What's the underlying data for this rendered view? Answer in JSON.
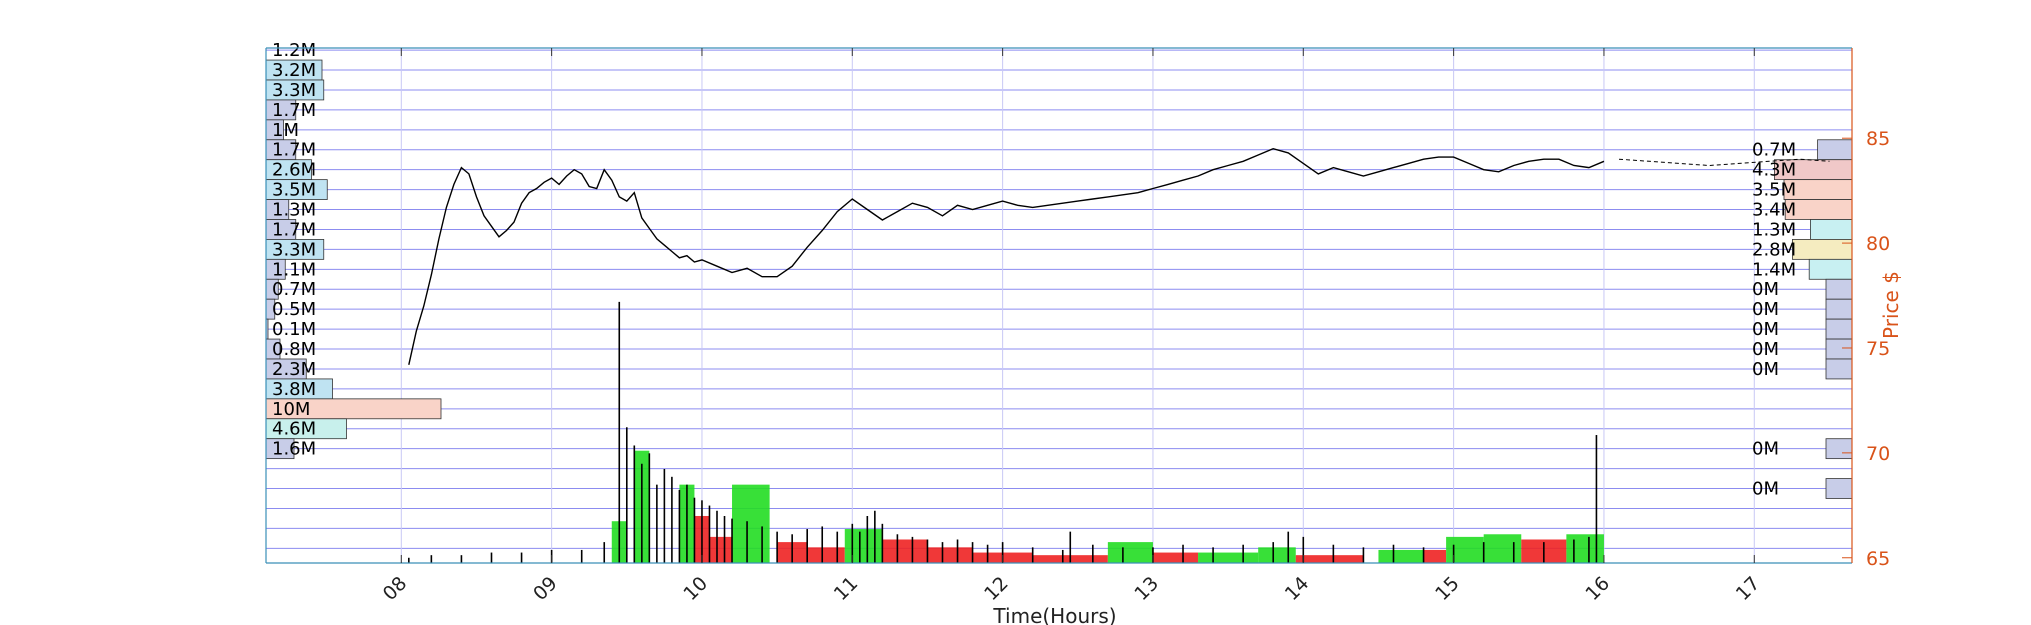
{
  "chart_data": {
    "type": "line",
    "xlabel": "Time(Hours)",
    "ylabel_right": "Price $",
    "xlim": [
      7.1,
      17.65
    ],
    "ylim": [
      64.75,
      89.3
    ],
    "x_ticks": [
      {
        "v": 8,
        "label": "08"
      },
      {
        "v": 9,
        "label": "09"
      },
      {
        "v": 10,
        "label": "10"
      },
      {
        "v": 11,
        "label": "11"
      },
      {
        "v": 12,
        "label": "12"
      },
      {
        "v": 13,
        "label": "13"
      },
      {
        "v": 14,
        "label": "14"
      },
      {
        "v": 15,
        "label": "15"
      },
      {
        "v": 16,
        "label": "16"
      },
      {
        "v": 17,
        "label": "17"
      }
    ],
    "y_ticks": [
      {
        "v": 65,
        "label": "65"
      },
      {
        "v": 70,
        "label": "70"
      },
      {
        "v": 75,
        "label": "75"
      },
      {
        "v": 80,
        "label": "80"
      },
      {
        "v": 85,
        "label": "85"
      }
    ],
    "price_bands": [
      89.2,
      88.25,
      87.3,
      86.35,
      85.4,
      84.45,
      83.5,
      82.55,
      81.6,
      80.65,
      79.7,
      78.75,
      77.8,
      76.85,
      75.9,
      74.95,
      74.0,
      73.05,
      72.1,
      71.15,
      70.2,
      69.25,
      68.3,
      67.35,
      66.4,
      65.45
    ],
    "left_volume_profile": [
      {
        "band": 89.2,
        "label": "1.2M",
        "value": 1.2,
        "color": ""
      },
      {
        "band": 88.25,
        "label": "3.2M",
        "value": 3.2,
        "color": "#bfe3f2"
      },
      {
        "band": 87.3,
        "label": "3.3M",
        "value": 3.3,
        "color": "#bfe3f2"
      },
      {
        "band": 86.35,
        "label": "1.7M",
        "value": 1.7,
        "color": "#c8cde8"
      },
      {
        "band": 85.4,
        "label": "1M",
        "value": 1.0,
        "color": "#c8cde8"
      },
      {
        "band": 84.45,
        "label": "1.7M",
        "value": 1.7,
        "color": "#c8cde8"
      },
      {
        "band": 83.5,
        "label": "2.6M",
        "value": 2.6,
        "color": "#bfe3f2"
      },
      {
        "band": 82.55,
        "label": "3.5M",
        "value": 3.5,
        "color": "#bfe3f2"
      },
      {
        "band": 81.6,
        "label": "1.3M",
        "value": 1.3,
        "color": "#c8cde8"
      },
      {
        "band": 80.65,
        "label": "1.7M",
        "value": 1.7,
        "color": "#c8cde8"
      },
      {
        "band": 79.7,
        "label": "3.3M",
        "value": 3.3,
        "color": "#bfe3f2"
      },
      {
        "band": 78.75,
        "label": "1.1M",
        "value": 1.1,
        "color": "#c8cde8"
      },
      {
        "band": 77.8,
        "label": "0.7M",
        "value": 0.7,
        "color": "#c8cde8"
      },
      {
        "band": 76.85,
        "label": "0.5M",
        "value": 0.5,
        "color": "#c8cde8"
      },
      {
        "band": 75.9,
        "label": "0.1M",
        "value": 0.1,
        "color": "#c8cde8"
      },
      {
        "band": 74.95,
        "label": "0.8M",
        "value": 0.8,
        "color": "#c8cde8"
      },
      {
        "band": 74.0,
        "label": "2.3M",
        "value": 2.3,
        "color": "#c8cde8"
      },
      {
        "band": 73.05,
        "label": "3.8M",
        "value": 3.8,
        "color": "#bfe3f2"
      },
      {
        "band": 72.1,
        "label": "10M",
        "value": 10.0,
        "color": "#f9d3c8"
      },
      {
        "band": 71.15,
        "label": "4.6M",
        "value": 4.6,
        "color": "#c8f0ec"
      },
      {
        "band": 70.2,
        "label": "1.6M",
        "value": 1.6,
        "color": "#c8cde8"
      }
    ],
    "right_volume_profile": [
      {
        "band": 84.45,
        "label": "0.7M",
        "value": 0.7,
        "color": "#c8cde8"
      },
      {
        "band": 83.5,
        "label": "4.3M",
        "value": 4.3,
        "color": "#f0c8c8"
      },
      {
        "band": 82.55,
        "label": "3.5M",
        "value": 3.5,
        "color": "#f9d3c8"
      },
      {
        "band": 81.6,
        "label": "3.4M",
        "value": 3.4,
        "color": "#f9d3c8"
      },
      {
        "band": 80.65,
        "label": "1.3M",
        "value": 1.3,
        "color": "#c8f0f2"
      },
      {
        "band": 79.7,
        "label": "2.8M",
        "value": 2.8,
        "color": "#f5ecc0"
      },
      {
        "band": 78.75,
        "label": "1.4M",
        "value": 1.4,
        "color": "#c8f0f2"
      },
      {
        "band": 77.8,
        "label": "0M",
        "value": 0,
        "color": "#c8cde8"
      },
      {
        "band": 76.85,
        "label": "0M",
        "value": 0,
        "color": "#c8cde8"
      },
      {
        "band": 75.9,
        "label": "0M",
        "value": 0,
        "color": "#c8cde8"
      },
      {
        "band": 74.95,
        "label": "0M",
        "value": 0,
        "color": "#c8cde8"
      },
      {
        "band": 74.0,
        "label": "0M",
        "value": 0,
        "color": "#c8cde8"
      },
      {
        "band": 70.2,
        "label": "0M",
        "value": 0,
        "color": "#c8cde8"
      },
      {
        "band": 68.3,
        "label": "0M",
        "value": 0,
        "color": "#c8cde8"
      }
    ],
    "price_series": {
      "x": [
        8.05,
        8.1,
        8.15,
        8.2,
        8.25,
        8.3,
        8.35,
        8.4,
        8.45,
        8.5,
        8.55,
        8.6,
        8.65,
        8.7,
        8.75,
        8.8,
        8.85,
        8.9,
        8.95,
        9.0,
        9.05,
        9.1,
        9.15,
        9.2,
        9.25,
        9.3,
        9.35,
        9.4,
        9.45,
        9.5,
        9.55,
        9.6,
        9.65,
        9.7,
        9.75,
        9.8,
        9.85,
        9.9,
        9.95,
        10.0,
        10.1,
        10.2,
        10.3,
        10.4,
        10.5,
        10.6,
        10.7,
        10.8,
        10.9,
        11.0,
        11.1,
        11.2,
        11.3,
        11.4,
        11.5,
        11.6,
        11.7,
        11.8,
        11.9,
        12.0,
        12.1,
        12.2,
        12.3,
        12.4,
        12.5,
        12.6,
        12.7,
        12.8,
        12.9,
        13.0,
        13.1,
        13.2,
        13.3,
        13.4,
        13.5,
        13.6,
        13.7,
        13.8,
        13.9,
        14.0,
        14.1,
        14.2,
        14.3,
        14.4,
        14.5,
        14.6,
        14.7,
        14.8,
        14.9,
        15.0,
        15.1,
        15.2,
        15.3,
        15.4,
        15.5,
        15.6,
        15.7,
        15.8,
        15.9,
        16.0
      ],
      "y": [
        74.2,
        75.8,
        77.0,
        78.5,
        80.2,
        81.7,
        82.8,
        83.6,
        83.3,
        82.2,
        81.3,
        80.8,
        80.3,
        80.6,
        81.0,
        81.9,
        82.4,
        82.6,
        82.9,
        83.1,
        82.8,
        83.2,
        83.5,
        83.3,
        82.7,
        82.6,
        83.5,
        83.0,
        82.2,
        82.0,
        82.4,
        81.2,
        80.7,
        80.2,
        79.9,
        79.6,
        79.3,
        79.4,
        79.1,
        79.2,
        78.9,
        78.6,
        78.8,
        78.4,
        78.4,
        78.9,
        79.8,
        80.6,
        81.5,
        82.1,
        81.6,
        81.1,
        81.5,
        81.9,
        81.7,
        81.3,
        81.8,
        81.6,
        81.8,
        82.0,
        81.8,
        81.7,
        81.8,
        81.9,
        82.0,
        82.1,
        82.2,
        82.3,
        82.4,
        82.6,
        82.8,
        83.0,
        83.2,
        83.5,
        83.7,
        83.9,
        84.2,
        84.5,
        84.3,
        83.8,
        83.3,
        83.6,
        83.4,
        83.2,
        83.4,
        83.6,
        83.8,
        84.0,
        84.1,
        84.1,
        83.8,
        83.5,
        83.4,
        83.7,
        83.9,
        84.0,
        84.0,
        83.7,
        83.6,
        83.9
      ],
      "after_hours_x": [
        16.1,
        16.3,
        16.5,
        16.7,
        16.9,
        17.1,
        17.3,
        17.5
      ],
      "after_hours_y": [
        84.0,
        83.9,
        83.8,
        83.7,
        83.8,
        83.9,
        84.0,
        83.9
      ]
    },
    "volume_bars": {
      "note_max_scale": "bars drawn in relative units",
      "x": [
        8.05,
        8.2,
        8.4,
        8.6,
        8.8,
        9.0,
        9.2,
        9.35,
        9.45,
        9.5,
        9.55,
        9.6,
        9.65,
        9.7,
        9.75,
        9.8,
        9.85,
        9.9,
        9.95,
        10.0,
        10.05,
        10.1,
        10.15,
        10.2,
        10.3,
        10.4,
        10.5,
        10.6,
        10.7,
        10.8,
        10.9,
        11.0,
        11.05,
        11.1,
        11.15,
        11.2,
        11.3,
        11.4,
        11.5,
        11.6,
        11.7,
        11.8,
        11.9,
        12.0,
        12.2,
        12.4,
        12.45,
        12.6,
        12.8,
        13.0,
        13.2,
        13.4,
        13.6,
        13.8,
        13.9,
        14.0,
        14.2,
        14.4,
        14.6,
        14.8,
        15.0,
        15.2,
        15.4,
        15.6,
        15.8,
        15.9,
        15.95
      ],
      "v": [
        2,
        3,
        3,
        4,
        4,
        5,
        5,
        8,
        100,
        52,
        45,
        38,
        42,
        30,
        36,
        33,
        28,
        30,
        25,
        24,
        22,
        20,
        18,
        17,
        16,
        14,
        12,
        11,
        13,
        14,
        12,
        15,
        12,
        18,
        20,
        15,
        11,
        10,
        9,
        8,
        9,
        8,
        7,
        8,
        6,
        5,
        12,
        7,
        6,
        6,
        7,
        6,
        7,
        8,
        12,
        10,
        7,
        6,
        7,
        6,
        7,
        8,
        8,
        8,
        9,
        10,
        49
      ]
    },
    "trade_boxes": [
      {
        "x0": 9.4,
        "x1": 9.5,
        "v": 16,
        "color": "#22dd22"
      },
      {
        "x0": 9.55,
        "x1": 9.65,
        "v": 43,
        "color": "#22dd22"
      },
      {
        "x0": 9.85,
        "x1": 9.95,
        "v": 30,
        "color": "#22dd22"
      },
      {
        "x0": 9.95,
        "x1": 10.05,
        "v": 18,
        "color": "#ee2222"
      },
      {
        "x0": 10.05,
        "x1": 10.2,
        "v": 10,
        "color": "#ee2222"
      },
      {
        "x0": 10.2,
        "x1": 10.45,
        "v": 30,
        "color": "#22dd22"
      },
      {
        "x0": 10.5,
        "x1": 10.7,
        "v": 8,
        "color": "#ee2222"
      },
      {
        "x0": 10.7,
        "x1": 10.95,
        "v": 6,
        "color": "#ee2222"
      },
      {
        "x0": 10.95,
        "x1": 11.2,
        "v": 13,
        "color": "#22dd22"
      },
      {
        "x0": 11.2,
        "x1": 11.5,
        "v": 9,
        "color": "#ee2222"
      },
      {
        "x0": 11.5,
        "x1": 11.8,
        "v": 6,
        "color": "#ee2222"
      },
      {
        "x0": 11.8,
        "x1": 12.2,
        "v": 4,
        "color": "#ee2222"
      },
      {
        "x0": 12.2,
        "x1": 12.7,
        "v": 3,
        "color": "#ee2222"
      },
      {
        "x0": 12.7,
        "x1": 13.0,
        "v": 8,
        "color": "#22dd22"
      },
      {
        "x0": 13.0,
        "x1": 13.3,
        "v": 4,
        "color": "#ee2222"
      },
      {
        "x0": 13.3,
        "x1": 13.7,
        "v": 4,
        "color": "#22dd22"
      },
      {
        "x0": 13.7,
        "x1": 13.95,
        "v": 6,
        "color": "#22dd22"
      },
      {
        "x0": 13.95,
        "x1": 14.4,
        "v": 3,
        "color": "#ee2222"
      },
      {
        "x0": 14.5,
        "x1": 14.8,
        "v": 5,
        "color": "#22dd22"
      },
      {
        "x0": 14.8,
        "x1": 14.95,
        "v": 5,
        "color": "#ee2222"
      },
      {
        "x0": 14.95,
        "x1": 15.2,
        "v": 10,
        "color": "#22dd22"
      },
      {
        "x0": 15.2,
        "x1": 15.45,
        "v": 11,
        "color": "#22dd22"
      },
      {
        "x0": 15.45,
        "x1": 15.75,
        "v": 9,
        "color": "#ee2222"
      },
      {
        "x0": 15.75,
        "x1": 16.0,
        "v": 11,
        "color": "#22dd22"
      }
    ]
  }
}
